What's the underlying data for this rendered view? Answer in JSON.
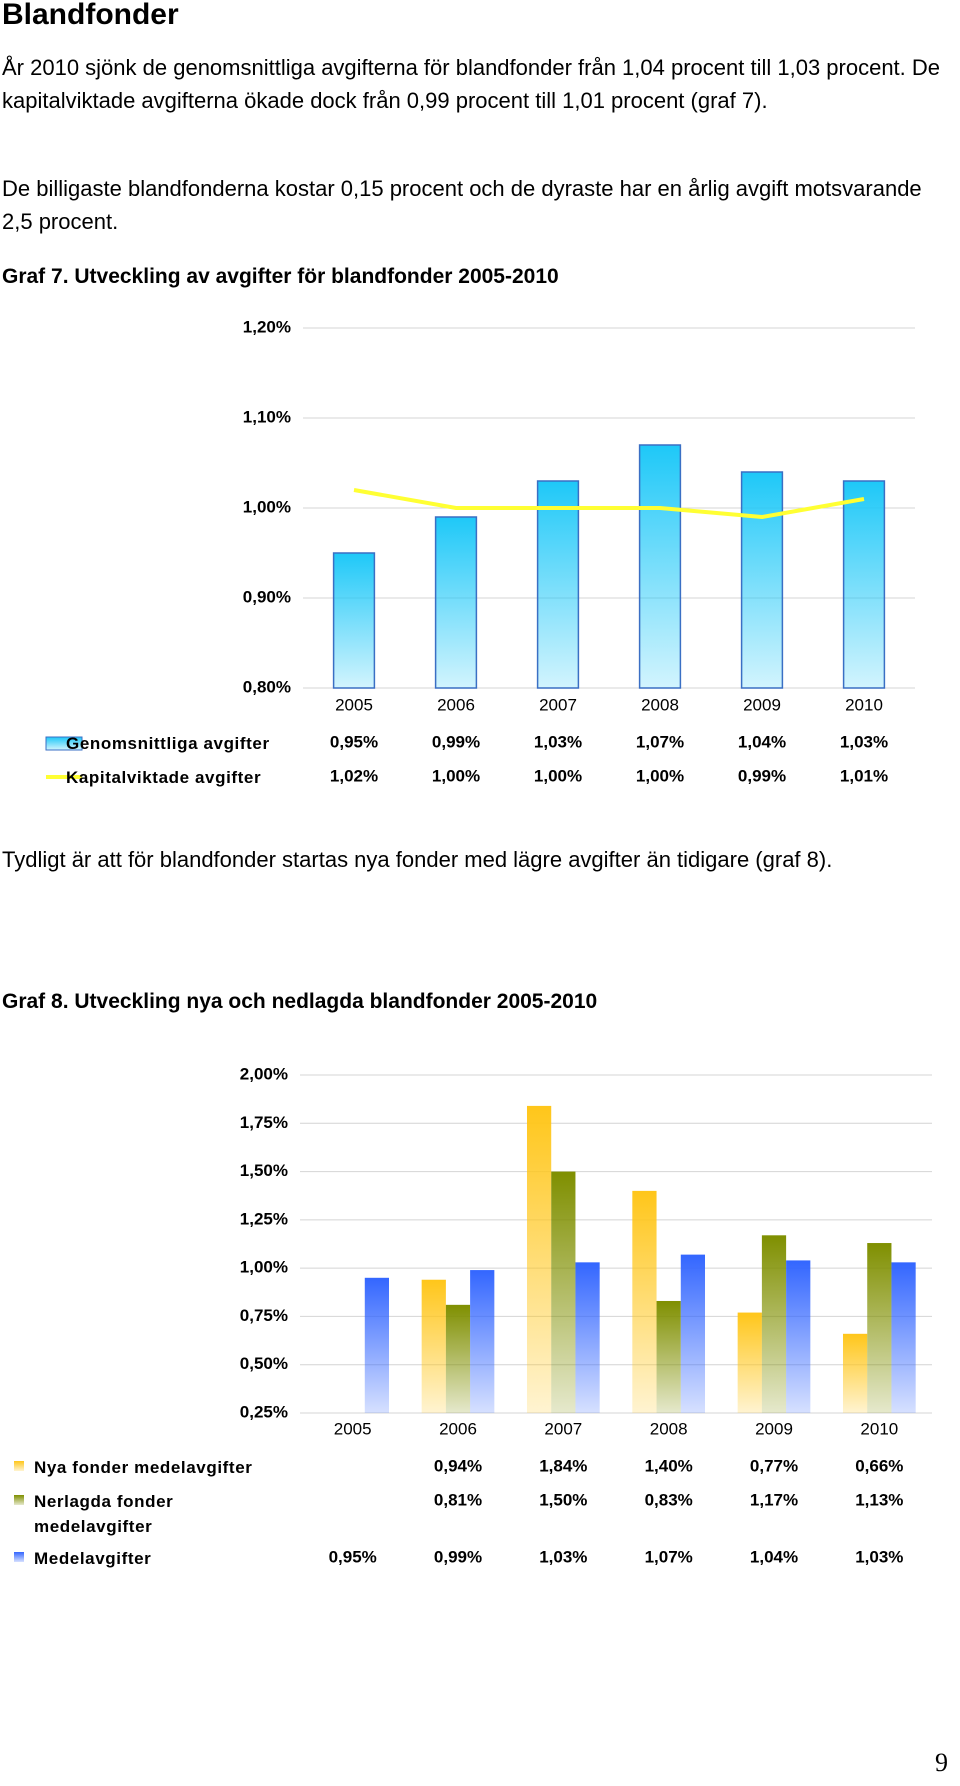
{
  "heading": "Blandfonder",
  "paragraphs": [
    "År 2010 sjönk de genomsnittliga avgifterna för blandfonder från 1,04 procent till 1,03 procent. De kapitalviktade avgifterna ökade dock från 0,99 procent till 1,01 procent (graf 7).",
    "De billigaste blandfonderna kostar 0,15 procent och de dyraste har en årlig avgift motsvarande 2,5 procent.",
    "Tydligt är att för blandfonder startas nya fonder med lägre avgifter än tidigare (graf 8)."
  ],
  "chart_data": [
    {
      "type": "bar",
      "title": "Graf 7. Utveckling av avgifter för blandfonder 2005-2010",
      "categories": [
        "2005",
        "2006",
        "2007",
        "2008",
        "2009",
        "2010"
      ],
      "series": [
        {
          "name": "Genomsnittliga avgifter",
          "type": "bar",
          "color": "#1ec8f8",
          "values": [
            0.95,
            0.99,
            1.03,
            1.07,
            1.04,
            1.03
          ],
          "value_labels": [
            "0,95%",
            "0,99%",
            "1,03%",
            "1,07%",
            "1,04%",
            "1,03%"
          ]
        },
        {
          "name": "Kapitalviktade avgifter",
          "type": "line",
          "color": "#ffff33",
          "values": [
            1.02,
            1.0,
            1.0,
            1.0,
            0.99,
            1.01
          ],
          "value_labels": [
            "1,02%",
            "1,00%",
            "1,00%",
            "1,00%",
            "0,99%",
            "1,01%"
          ]
        }
      ],
      "ylim": [
        0.8,
        1.2
      ],
      "yticks": [
        {
          "value": 0.8,
          "label": "0,80%"
        },
        {
          "value": 0.9,
          "label": "0,90%"
        },
        {
          "value": 1.0,
          "label": "1,00%"
        },
        {
          "value": 1.1,
          "label": "1,10%"
        },
        {
          "value": 1.2,
          "label": "1,20%"
        }
      ],
      "grid": true
    },
    {
      "type": "bar",
      "title": "Graf 8. Utveckling nya och nedlagda blandfonder 2005-2010",
      "categories": [
        "2005",
        "2006",
        "2007",
        "2008",
        "2009",
        "2010"
      ],
      "series": [
        {
          "name": "Nya fonder medelavgifter",
          "type": "bar",
          "color": "#ffc61a",
          "values": [
            null,
            0.94,
            1.84,
            1.4,
            0.77,
            0.66
          ],
          "value_labels": [
            null,
            "0,94%",
            "1,84%",
            "1,40%",
            "0,77%",
            "0,66%"
          ]
        },
        {
          "name": "Nerlagda fonder medelavgifter",
          "type": "bar",
          "color": "#7f8f00",
          "values": [
            null,
            0.81,
            1.5,
            0.83,
            1.17,
            1.13
          ],
          "value_labels": [
            null,
            "0,81%",
            "1,50%",
            "0,83%",
            "1,17%",
            "1,13%"
          ]
        },
        {
          "name": "Medelavgifter",
          "type": "bar",
          "color": "#3366ff",
          "values": [
            0.95,
            0.99,
            1.03,
            1.07,
            1.04,
            1.03
          ],
          "value_labels": [
            "0,95%",
            "0,99%",
            "1,03%",
            "1,07%",
            "1,04%",
            "1,03%"
          ]
        }
      ],
      "ylim": [
        0.25,
        2.0
      ],
      "yticks": [
        {
          "value": 0.25,
          "label": "0,25%"
        },
        {
          "value": 0.5,
          "label": "0,50%"
        },
        {
          "value": 0.75,
          "label": "0,75%"
        },
        {
          "value": 1.0,
          "label": "1,00%"
        },
        {
          "value": 1.25,
          "label": "1,25%"
        },
        {
          "value": 1.5,
          "label": "1,50%"
        },
        {
          "value": 1.75,
          "label": "1,75%"
        },
        {
          "value": 2.0,
          "label": "2,00%"
        }
      ],
      "grid": true
    }
  ],
  "page_number": "9"
}
